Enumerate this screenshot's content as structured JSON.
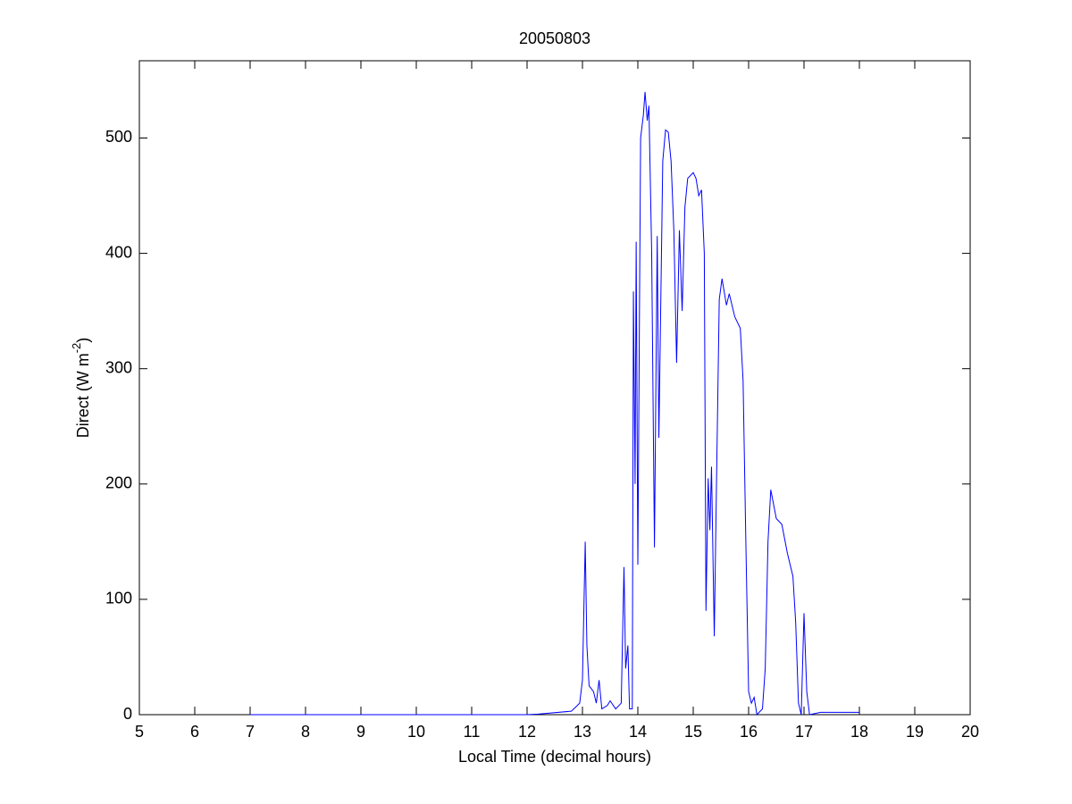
{
  "chart_data": {
    "type": "line",
    "title": "20050803",
    "xlabel": "Local Time (decimal hours)",
    "ylabel": {
      "text": "Direct (W m",
      "superscript": "-2",
      "suffix": ")"
    },
    "x": [
      7,
      12,
      12.2,
      12.8,
      12.95,
      13.0,
      13.05,
      13.08,
      13.12,
      13.2,
      13.25,
      13.3,
      13.35,
      13.45,
      13.5,
      13.6,
      13.7,
      13.75,
      13.78,
      13.82,
      13.85,
      13.9,
      13.92,
      13.95,
      13.97,
      14.0,
      14.05,
      14.1,
      14.13,
      14.17,
      14.2,
      14.25,
      14.3,
      14.35,
      14.38,
      14.45,
      14.5,
      14.55,
      14.6,
      14.65,
      14.7,
      14.75,
      14.8,
      14.85,
      14.9,
      15.0,
      15.05,
      15.1,
      15.15,
      15.2,
      15.23,
      15.27,
      15.3,
      15.33,
      15.38,
      15.42,
      15.47,
      15.52,
      15.6,
      15.65,
      15.75,
      15.85,
      15.9,
      15.95,
      16.0,
      16.05,
      16.1,
      16.15,
      16.25,
      16.3,
      16.35,
      16.4,
      16.5,
      16.6,
      16.7,
      16.8,
      16.85,
      16.9,
      16.95,
      17.0,
      17.05,
      17.1,
      17.3,
      17.5,
      18.0
    ],
    "series": [
      {
        "color": "#0000ff",
        "values": [
          0,
          0,
          0.5,
          3,
          10,
          30,
          150,
          60,
          25,
          20,
          10,
          30,
          5,
          8,
          12,
          5,
          10,
          128,
          40,
          60,
          5,
          5,
          367,
          200,
          410,
          130,
          500,
          520,
          540,
          515,
          528,
          400,
          145,
          415,
          240,
          480,
          507,
          505,
          480,
          420,
          305,
          420,
          350,
          440,
          465,
          470,
          465,
          450,
          455,
          400,
          90,
          205,
          160,
          215,
          68,
          200,
          360,
          378,
          355,
          365,
          345,
          335,
          290,
          150,
          20,
          10,
          15,
          0,
          5,
          40,
          150,
          195,
          170,
          165,
          140,
          120,
          80,
          10,
          0,
          88,
          20,
          0,
          2,
          2,
          2
        ]
      }
    ],
    "xlim": [
      5,
      20
    ],
    "xticks": [
      5,
      6,
      7,
      8,
      9,
      10,
      11,
      12,
      13,
      14,
      15,
      16,
      17,
      18,
      19,
      20
    ],
    "ylim": [
      0,
      567
    ],
    "yticks": [
      0,
      100,
      200,
      300,
      400,
      500
    ]
  }
}
